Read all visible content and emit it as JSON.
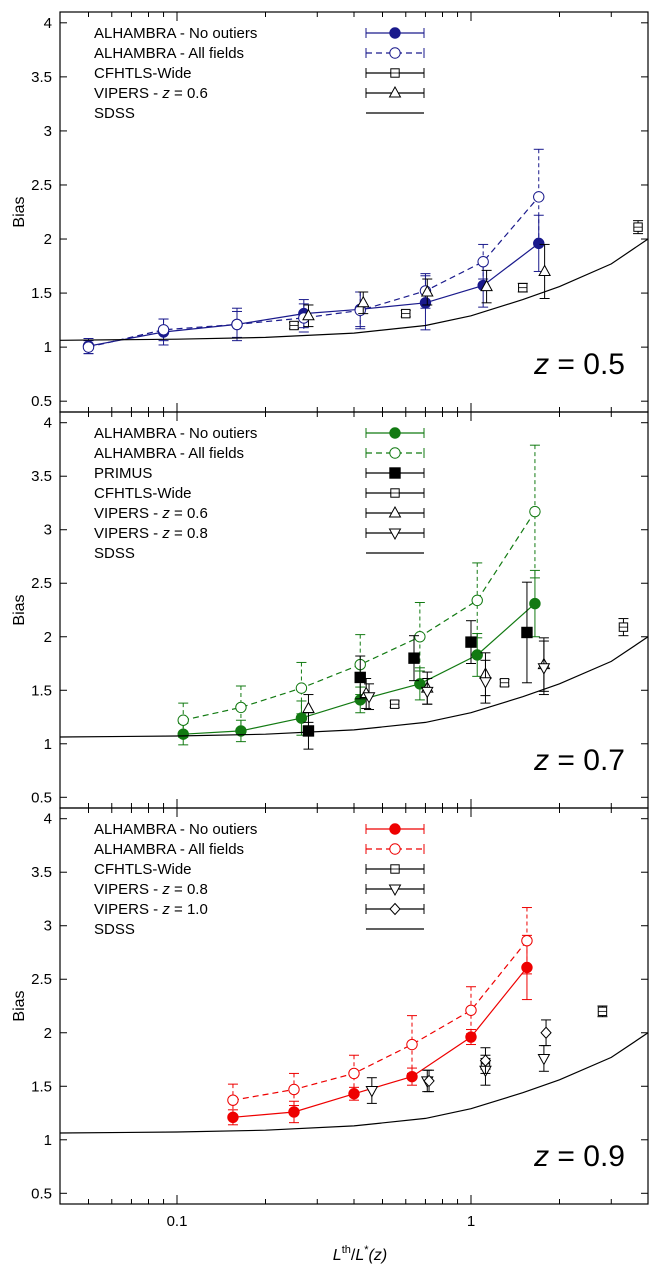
{
  "figure": {
    "xlabel": "L^th/L*(z)",
    "xlabel_parts": {
      "L": "L",
      "th": "th",
      "slash": "/",
      "L2": "L",
      "star": "*",
      "z": "(z)"
    },
    "x_tick_labels": [
      "0.1",
      "1"
    ]
  },
  "chart_data": [
    {
      "type": "scatter",
      "panel": "z = 0.5",
      "label": "z = 0.5",
      "label_parts": {
        "var": "z",
        "rest": " = 0.5"
      },
      "xscale": "log",
      "xlim": [
        0.04,
        4.0
      ],
      "ylim": [
        0.4,
        4.1
      ],
      "ylabel": "Bias",
      "yticks": [
        "0.5",
        "1",
        "1.5",
        "2",
        "2.5",
        "3",
        "3.5",
        "4"
      ],
      "legend_position": "top-left",
      "legend": [
        {
          "label": "ALHAMBRA - No outiers",
          "series": "alh_no"
        },
        {
          "label": "ALHAMBRA - All fields",
          "series": "alh_all"
        },
        {
          "label": "CFHTLS-Wide",
          "series": "cfhtls"
        },
        {
          "label_prefix": "VIPERS - ",
          "label_var": "z",
          "label_value": " = 0.6",
          "series": "vipers06"
        },
        {
          "label": "SDSS",
          "series": "sdss"
        }
      ],
      "series": [
        {
          "key": "alh_no",
          "name": "ALHAMBRA - No outiers",
          "marker": "filled-circle",
          "color": "#1a1a8c",
          "line": "solid",
          "x": [
            0.05,
            0.09,
            0.16,
            0.27,
            0.42,
            0.7,
            1.1,
            1.7
          ],
          "y": [
            1.01,
            1.14,
            1.21,
            1.31,
            1.35,
            1.41,
            1.57,
            1.96
          ],
          "err": [
            0.07,
            0.12,
            0.15,
            0.13,
            0.16,
            0.25,
            0.2,
            0.26
          ]
        },
        {
          "key": "alh_all",
          "name": "ALHAMBRA - All fields",
          "marker": "open-circle",
          "color": "#1a1a8c",
          "line": "dashed",
          "x": [
            0.05,
            0.09,
            0.16,
            0.27,
            0.42,
            0.7,
            1.1,
            1.7
          ],
          "y": [
            1.0,
            1.16,
            1.21,
            1.27,
            1.34,
            1.52,
            1.79,
            2.39
          ],
          "err": [
            0.06,
            0.1,
            0.12,
            0.13,
            0.17,
            0.16,
            0.16,
            0.44
          ]
        },
        {
          "key": "cfhtls",
          "name": "CFHTLS-Wide",
          "marker": "open-square",
          "color": "#000000",
          "line": "none",
          "x": [
            0.25,
            0.6,
            1.5,
            3.7
          ],
          "y": [
            1.2,
            1.31,
            1.55,
            2.11
          ],
          "err": [
            0.03,
            0.03,
            0.04,
            0.06
          ]
        },
        {
          "key": "vipers06",
          "name": "VIPERS - z = 0.6",
          "marker": "open-triangle-up",
          "color": "#000000",
          "line": "none",
          "x": [
            0.28,
            0.43,
            0.71,
            1.13,
            1.78
          ],
          "y": [
            1.29,
            1.41,
            1.51,
            1.56,
            1.7
          ],
          "err": [
            0.1,
            0.1,
            0.12,
            0.15,
            0.25
          ]
        },
        {
          "key": "sdss",
          "name": "SDSS",
          "marker": "none",
          "color": "#000000",
          "line": "solid-curve",
          "x": [
            0.04,
            0.1,
            0.2,
            0.4,
            0.7,
            1.0,
            1.5,
            2.0,
            3.0,
            4.0
          ],
          "y": [
            1.063,
            1.073,
            1.09,
            1.13,
            1.2,
            1.29,
            1.44,
            1.56,
            1.77,
            2.0
          ]
        }
      ]
    },
    {
      "type": "scatter",
      "panel": "z = 0.7",
      "label": "z = 0.7",
      "label_parts": {
        "var": "z",
        "rest": " = 0.7"
      },
      "xscale": "log",
      "xlim": [
        0.04,
        4.0
      ],
      "ylim": [
        0.4,
        4.1
      ],
      "ylabel": "Bias",
      "yticks": [
        "0.5",
        "1",
        "1.5",
        "2",
        "2.5",
        "3",
        "3.5",
        "4"
      ],
      "legend_position": "top-left",
      "legend": [
        {
          "label": "ALHAMBRA - No outiers",
          "series": "alh_no"
        },
        {
          "label": "ALHAMBRA - All fields",
          "series": "alh_all"
        },
        {
          "label": "PRIMUS",
          "series": "primus"
        },
        {
          "label": "CFHTLS-Wide",
          "series": "cfhtls"
        },
        {
          "label_prefix": "VIPERS - ",
          "label_var": "z",
          "label_value": " = 0.6",
          "series": "vipers06"
        },
        {
          "label_prefix": "VIPERS - ",
          "label_var": "z",
          "label_value": " = 0.8",
          "series": "vipers08"
        },
        {
          "label": "SDSS",
          "series": "sdss"
        }
      ],
      "series": [
        {
          "key": "alh_no",
          "name": "ALHAMBRA - No outiers",
          "marker": "filled-circle",
          "color": "#127a12",
          "line": "solid",
          "x": [
            0.105,
            0.165,
            0.265,
            0.42,
            0.67,
            1.05,
            1.65
          ],
          "y": [
            1.09,
            1.12,
            1.24,
            1.41,
            1.56,
            1.83,
            2.31
          ],
          "err": [
            0.1,
            0.1,
            0.16,
            0.12,
            0.15,
            0.2,
            0.31
          ]
        },
        {
          "key": "alh_all",
          "name": "ALHAMBRA - All fields",
          "marker": "open-circle",
          "color": "#127a12",
          "line": "dashed",
          "x": [
            0.105,
            0.165,
            0.265,
            0.42,
            0.67,
            1.05,
            1.65
          ],
          "y": [
            1.22,
            1.34,
            1.52,
            1.74,
            2.0,
            2.34,
            3.17
          ],
          "err": [
            0.16,
            0.2,
            0.24,
            0.28,
            0.32,
            0.35,
            0.62
          ]
        },
        {
          "key": "primus",
          "name": "PRIMUS",
          "marker": "filled-square",
          "color": "#000000",
          "line": "none",
          "x": [
            0.28,
            0.42,
            0.64,
            1.0,
            1.55
          ],
          "y": [
            1.12,
            1.62,
            1.8,
            1.95,
            2.04
          ],
          "err": [
            0.17,
            0.2,
            0.21,
            0.2,
            0.47
          ]
        },
        {
          "key": "cfhtls",
          "name": "CFHTLS-Wide",
          "marker": "open-square",
          "color": "#000000",
          "line": "none",
          "x": [
            0.55,
            1.3,
            3.3
          ],
          "y": [
            1.37,
            1.57,
            2.09
          ],
          "err": [
            0.03,
            0.03,
            0.08
          ]
        },
        {
          "key": "vipers06",
          "name": "VIPERS - z = 0.6",
          "marker": "open-triangle-up",
          "color": "#000000",
          "line": "none",
          "x": [
            0.28,
            0.44,
            0.71,
            1.12,
            1.77
          ],
          "y": [
            1.33,
            1.47,
            1.52,
            1.65,
            1.74
          ],
          "err": [
            0.13,
            0.14,
            0.15,
            0.2,
            0.25
          ]
        },
        {
          "key": "vipers08",
          "name": "VIPERS - z = 0.8",
          "marker": "open-triangle-down",
          "color": "#000000",
          "line": "none",
          "x": [
            0.45,
            0.71,
            1.12,
            1.77
          ],
          "y": [
            1.44,
            1.49,
            1.58,
            1.71
          ],
          "err": [
            0.12,
            0.12,
            0.2,
            0.25
          ]
        },
        {
          "key": "sdss",
          "name": "SDSS",
          "marker": "none",
          "color": "#000000",
          "line": "solid-curve",
          "x": [
            0.04,
            0.1,
            0.2,
            0.4,
            0.7,
            1.0,
            1.5,
            2.0,
            3.0,
            4.0
          ],
          "y": [
            1.063,
            1.073,
            1.09,
            1.13,
            1.2,
            1.29,
            1.44,
            1.56,
            1.77,
            2.0
          ]
        }
      ]
    },
    {
      "type": "scatter",
      "panel": "z = 0.9",
      "label": "z = 0.9",
      "label_parts": {
        "var": "z",
        "rest": " = 0.9"
      },
      "xscale": "log",
      "xlim": [
        0.04,
        4.0
      ],
      "ylim": [
        0.4,
        4.1
      ],
      "ylabel": "Bias",
      "yticks": [
        "0.5",
        "1",
        "1.5",
        "2",
        "2.5",
        "3",
        "3.5",
        "4"
      ],
      "legend_position": "top-left",
      "legend": [
        {
          "label": "ALHAMBRA - No outiers",
          "series": "alh_no"
        },
        {
          "label": "ALHAMBRA - All fields",
          "series": "alh_all"
        },
        {
          "label": "CFHTLS-Wide",
          "series": "cfhtls"
        },
        {
          "label_prefix": "VIPERS - ",
          "label_var": "z",
          "label_value": " = 0.8",
          "series": "vipers08"
        },
        {
          "label_prefix": "VIPERS - ",
          "label_var": "z",
          "label_value": " = 1.0",
          "series": "vipers10"
        },
        {
          "label": "SDSS",
          "series": "sdss"
        }
      ],
      "series": [
        {
          "key": "alh_no",
          "name": "ALHAMBRA - No outiers",
          "marker": "filled-circle",
          "color": "#ee0000",
          "line": "solid",
          "x": [
            0.155,
            0.25,
            0.4,
            0.63,
            1.0,
            1.55
          ],
          "y": [
            1.21,
            1.26,
            1.43,
            1.59,
            1.96,
            2.61
          ],
          "err": [
            0.07,
            0.1,
            0.06,
            0.08,
            0.07,
            0.3
          ]
        },
        {
          "key": "alh_all",
          "name": "ALHAMBRA - All fields",
          "marker": "open-circle",
          "color": "#ee0000",
          "line": "dashed",
          "x": [
            0.155,
            0.25,
            0.4,
            0.63,
            1.0,
            1.55
          ],
          "y": [
            1.37,
            1.47,
            1.62,
            1.89,
            2.21,
            2.86
          ],
          "err": [
            0.15,
            0.15,
            0.17,
            0.27,
            0.22,
            0.31
          ]
        },
        {
          "key": "cfhtls",
          "name": "CFHTLS-Wide",
          "marker": "open-square",
          "color": "#000000",
          "line": "none",
          "x": [
            1.12,
            2.8
          ],
          "y": [
            1.71,
            2.2
          ],
          "err": [
            0.05,
            0.05
          ]
        },
        {
          "key": "vipers08",
          "name": "VIPERS - z = 0.8",
          "marker": "open-triangle-down",
          "color": "#000000",
          "line": "none",
          "x": [
            0.46,
            0.71,
            1.12,
            1.77
          ],
          "y": [
            1.46,
            1.55,
            1.65,
            1.76
          ],
          "err": [
            0.12,
            0.1,
            0.14,
            0.12
          ]
        },
        {
          "key": "vipers10",
          "name": "VIPERS - z = 1.0",
          "marker": "open-diamond",
          "color": "#000000",
          "line": "none",
          "x": [
            0.72,
            1.12,
            1.8
          ],
          "y": [
            1.55,
            1.74,
            2.0
          ],
          "err": [
            0.1,
            0.12,
            0.12
          ]
        },
        {
          "key": "sdss",
          "name": "SDSS",
          "marker": "none",
          "color": "#000000",
          "line": "solid-curve",
          "x": [
            0.04,
            0.1,
            0.2,
            0.4,
            0.7,
            1.0,
            1.5,
            2.0,
            3.0,
            4.0
          ],
          "y": [
            1.063,
            1.073,
            1.09,
            1.13,
            1.2,
            1.29,
            1.44,
            1.56,
            1.77,
            2.0
          ]
        }
      ]
    }
  ]
}
